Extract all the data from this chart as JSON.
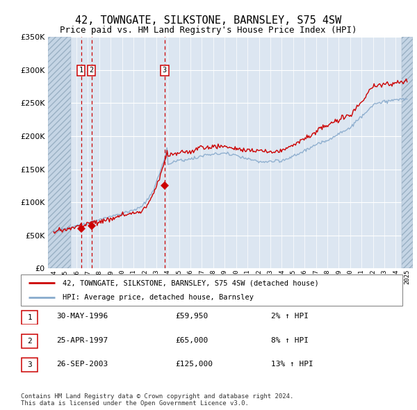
{
  "title": "42, TOWNGATE, SILKSTONE, BARNSLEY, S75 4SW",
  "subtitle": "Price paid vs. HM Land Registry's House Price Index (HPI)",
  "title_fontsize": 11,
  "subtitle_fontsize": 9,
  "bg_color": "#dce6f1",
  "hatch_color": "#c5d5e5",
  "grid_color": "#ffffff",
  "red_color": "#cc0000",
  "blue_color": "#88aacc",
  "ylim": [
    0,
    350000
  ],
  "yticks": [
    0,
    50000,
    100000,
    150000,
    200000,
    250000,
    300000,
    350000
  ],
  "xlim_start": 1993.5,
  "xlim_end": 2025.5,
  "hatch_left_end": 1995.5,
  "hatch_right_start": 2024.5,
  "sales": [
    {
      "year": 1996.41,
      "price": 59950,
      "label": "1"
    },
    {
      "year": 1997.31,
      "price": 65000,
      "label": "2"
    },
    {
      "year": 2003.73,
      "price": 125000,
      "label": "3"
    }
  ],
  "legend_line1": "42, TOWNGATE, SILKSTONE, BARNSLEY, S75 4SW (detached house)",
  "legend_line2": "HPI: Average price, detached house, Barnsley",
  "table_rows": [
    {
      "num": "1",
      "date": "30-MAY-1996",
      "price": "£59,950",
      "hpi": "2% ↑ HPI"
    },
    {
      "num": "2",
      "date": "25-APR-1997",
      "price": "£65,000",
      "hpi": "8% ↑ HPI"
    },
    {
      "num": "3",
      "date": "26-SEP-2003",
      "price": "£125,000",
      "hpi": "13% ↑ HPI"
    }
  ],
  "footer": "Contains HM Land Registry data © Crown copyright and database right 2024.\nThis data is licensed under the Open Government Licence v3.0."
}
